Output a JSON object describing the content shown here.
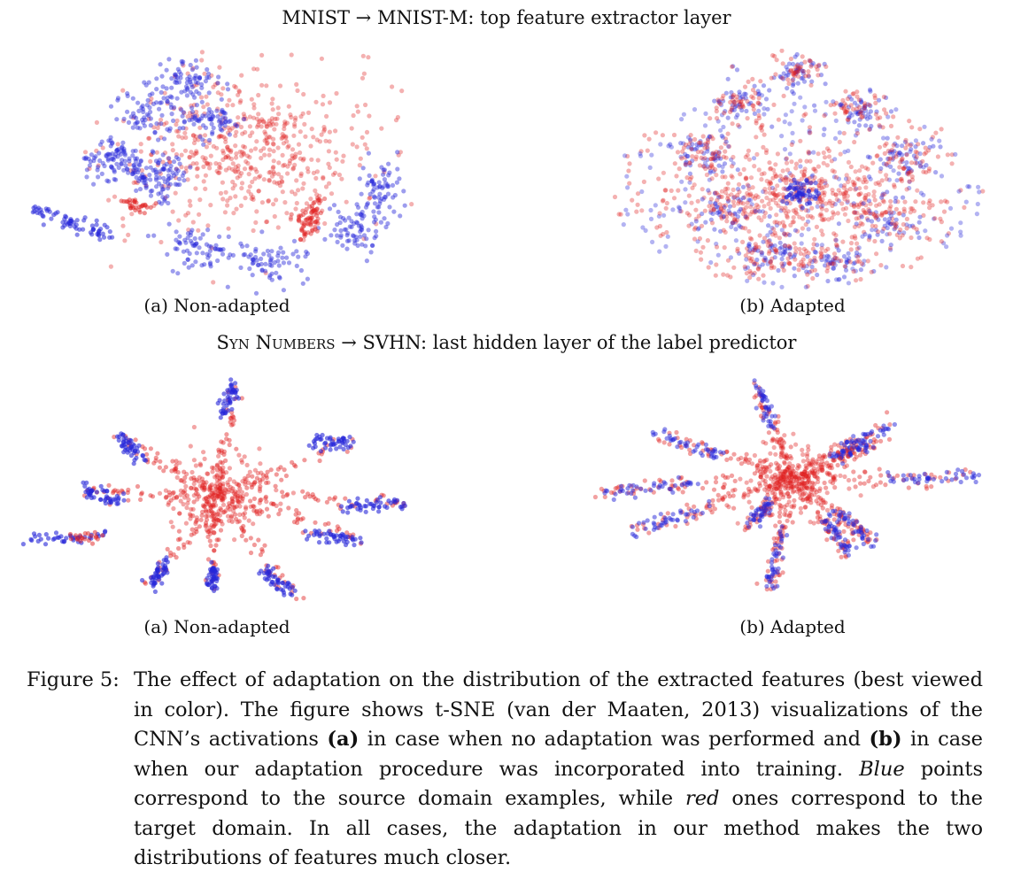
{
  "rows": [
    {
      "title_parts": [
        "MNIST",
        " → ",
        "MNIST-M",
        ": top feature extractor layer"
      ],
      "panels": [
        {
          "label": "(a) Non-adapted"
        },
        {
          "label": "(b) Adapted"
        }
      ]
    },
    {
      "title_parts": [
        "Syn Numbers",
        " → ",
        "SVHN",
        ": last hidden layer of the label predictor"
      ],
      "panels": [
        {
          "label": "(a) Non-adapted"
        },
        {
          "label": "(b) Adapted"
        }
      ]
    }
  ],
  "colors": {
    "source_blue": "#2626d9",
    "target_red": "#e02020"
  },
  "caption": {
    "label": "Figure 5:",
    "p1": "The effect of adaptation on the distribution of the extracted features (best viewed in color). The figure shows t-SNE (van der Maaten, 2013) visualizations of the CNN’s activations ",
    "a": "(a)",
    "p2": " in case when no adaptation was performed and ",
    "b": "(b)",
    "p3": " in case when our adaptation procedure was incorporated into training. ",
    "blue": "Blue",
    "p4": " points correspond to the source domain examples, while ",
    "red": "red",
    "p5": " ones correspond to the target domain. In all cases, the adaptation in our method makes the two distributions of features much closer."
  }
}
